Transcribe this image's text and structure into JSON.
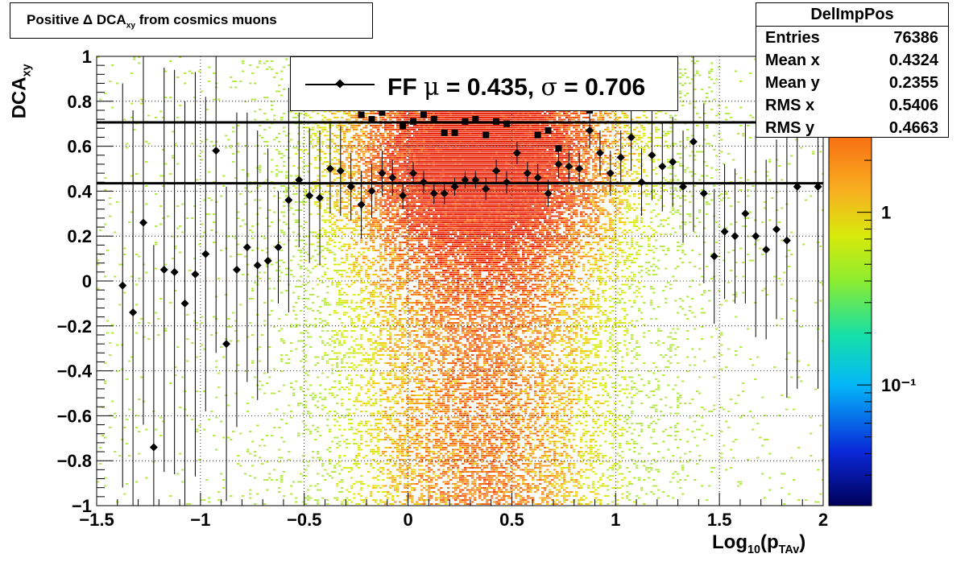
{
  "title": "Positive Δ DCA",
  "title_sub": "xy",
  "title_rest": " from cosmics muons",
  "stats": {
    "name": "DelImpPos",
    "rows": [
      {
        "key": "Entries",
        "value": "76386"
      },
      {
        "key": "Mean x",
        "value": "0.4324"
      },
      {
        "key": "Mean y",
        "value": "0.2355"
      },
      {
        "key": "RMS x",
        "value": "0.5406"
      },
      {
        "key": "RMS y",
        "value": "0.4663"
      }
    ]
  },
  "legend": {
    "label_prefix": "FF ",
    "mu_symbol": "μ",
    "mu_text": " =  0.435, ",
    "sigma_symbol": "σ",
    "sigma_text": " =   0.706"
  },
  "chart_data": {
    "type": "heatmap",
    "xlabel": "Log",
    "xlabel_sub1": "10",
    "xlabel_mid": "(p",
    "xlabel_sub2": "TAv",
    "xlabel_end": ")",
    "ylabel": "DCA",
    "ylabel_sub": "xy",
    "xlim": [
      -1.5,
      2
    ],
    "ylim": [
      -1,
      1
    ],
    "x_ticks": [
      -1.5,
      -1,
      -0.5,
      0,
      0.5,
      1,
      1.5,
      2
    ],
    "x_tick_labels": [
      "−1.5",
      "−1",
      "−0.5",
      "0",
      "0.5",
      "1",
      "1.5",
      "2"
    ],
    "y_ticks": [
      -1,
      -0.8,
      -0.6,
      -0.4,
      -0.2,
      0,
      0.2,
      0.4,
      0.6,
      0.8,
      1
    ],
    "y_tick_labels": [
      "−1",
      "−0.8",
      "−0.6",
      "−0.4",
      "−0.2",
      "0",
      "0.2",
      "0.4",
      "0.6",
      "0.8",
      "1"
    ],
    "grid": true,
    "z_scale": "log",
    "z_tick_labels": [
      "1",
      "10⁻¹"
    ],
    "z_ticks": [
      1,
      0.1
    ],
    "z_range": [
      0.02,
      8
    ],
    "hlines": [
      0.706,
      0.435
    ],
    "profile": {
      "marker": "diamond",
      "x": [
        -1.375,
        -1.325,
        -1.275,
        -1.225,
        -1.175,
        -1.125,
        -1.075,
        -1.025,
        -0.975,
        -0.925,
        -0.875,
        -0.825,
        -0.775,
        -0.725,
        -0.675,
        -0.625,
        -0.575,
        -0.525,
        -0.475,
        -0.425,
        -0.375,
        -0.325,
        -0.275,
        -0.225,
        -0.175,
        -0.125,
        -0.075,
        -0.025,
        0.025,
        0.075,
        0.125,
        0.175,
        0.225,
        0.275,
        0.325,
        0.375,
        0.425,
        0.475,
        0.525,
        0.575,
        0.625,
        0.675,
        0.725,
        0.775,
        0.825,
        0.875,
        0.925,
        0.975,
        1.025,
        1.075,
        1.125,
        1.175,
        1.225,
        1.275,
        1.325,
        1.375,
        1.425,
        1.475,
        1.525,
        1.575,
        1.625,
        1.675,
        1.725,
        1.775,
        1.825,
        1.875,
        1.975
      ],
      "y": [
        -0.02,
        -0.14,
        0.26,
        -0.74,
        0.05,
        0.04,
        -0.1,
        0.03,
        0.12,
        0.58,
        -0.28,
        0.05,
        0.15,
        0.07,
        0.09,
        0.15,
        0.36,
        0.45,
        0.38,
        0.37,
        0.5,
        0.49,
        0.42,
        0.34,
        0.4,
        0.48,
        0.46,
        0.38,
        0.48,
        0.44,
        0.39,
        0.39,
        0.42,
        0.45,
        0.45,
        0.41,
        0.49,
        0.44,
        0.57,
        0.48,
        0.46,
        0.39,
        0.52,
        0.51,
        0.5,
        0.67,
        0.57,
        0.48,
        0.55,
        0.64,
        0.44,
        0.56,
        0.51,
        0.53,
        0.42,
        0.62,
        0.39,
        0.11,
        0.22,
        0.2,
        0.3,
        0.2,
        0.14,
        0.23,
        0.18,
        0.42,
        0.42
      ],
      "err": [
        0.9,
        0.9,
        0.9,
        0.9,
        0.9,
        0.9,
        0.9,
        0.9,
        0.7,
        0.9,
        0.7,
        0.7,
        0.6,
        0.6,
        0.5,
        0.25,
        0.5,
        0.3,
        0.3,
        0.3,
        0.2,
        0.2,
        0.15,
        0.15,
        0.12,
        0.1,
        0.08,
        0.06,
        0.05,
        0.05,
        0.05,
        0.05,
        0.04,
        0.04,
        0.04,
        0.05,
        0.05,
        0.05,
        0.05,
        0.05,
        0.06,
        0.06,
        0.06,
        0.07,
        0.07,
        0.08,
        0.1,
        0.1,
        0.12,
        0.15,
        0.15,
        0.2,
        0.2,
        0.2,
        0.25,
        0.4,
        0.4,
        0.3,
        0.3,
        0.3,
        0.4,
        0.45,
        0.4,
        0.4,
        0.7,
        0.9,
        0.9
      ]
    },
    "profile_square": {
      "marker": "square",
      "x": [
        -0.225,
        -0.175,
        -0.125,
        -0.025,
        0.025,
        0.075,
        0.125,
        0.175,
        0.225,
        0.275,
        0.325,
        0.375,
        0.425,
        0.475,
        0.525,
        0.575,
        0.625,
        0.675,
        0.725,
        0.875
      ],
      "y": [
        0.74,
        0.72,
        0.75,
        0.69,
        0.71,
        0.74,
        0.72,
        0.66,
        0.66,
        0.71,
        0.72,
        0.65,
        0.71,
        0.7,
        0.78,
        0.84,
        0.65,
        0.67,
        0.59,
        0.76
      ]
    }
  }
}
